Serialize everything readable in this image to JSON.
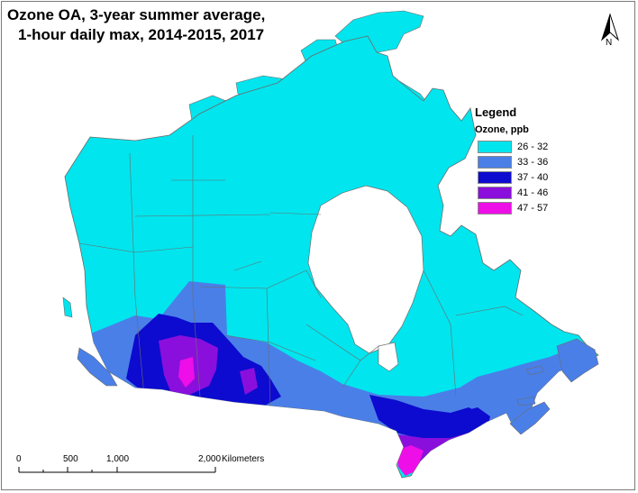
{
  "title": {
    "line1": "Ozone OA, 3-year summer average,",
    "line2": "1-hour daily max, 2014-2015, 2017"
  },
  "north_arrow": {
    "label": "N",
    "icon": "north-arrow-icon"
  },
  "legend": {
    "title": "Legend",
    "subtitle": "Ozone, ppb",
    "items": [
      {
        "label": "26 - 32",
        "color": "#00e5ee"
      },
      {
        "label": "33 - 36",
        "color": "#4a7fe8"
      },
      {
        "label": "37 - 40",
        "color": "#0d0bcf"
      },
      {
        "label": "41 - 46",
        "color": "#8a0fdd"
      },
      {
        "label": "47 - 57",
        "color": "#ee0ee8"
      }
    ]
  },
  "scale_bar": {
    "ticks": [
      "0",
      "500",
      "1,000",
      "2,000"
    ],
    "unit": "Kilometers"
  },
  "colors": {
    "border": "#6c6c6c",
    "land": "#00e5ee",
    "water": "#ffffff"
  }
}
